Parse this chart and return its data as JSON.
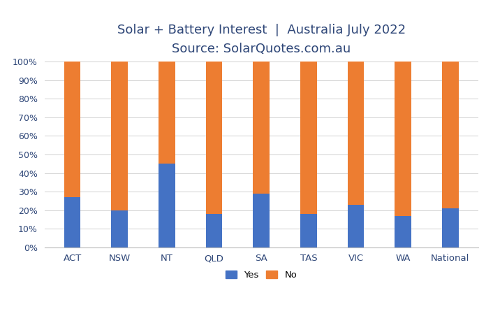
{
  "categories": [
    "ACT",
    "NSW",
    "NT",
    "QLD",
    "SA",
    "TAS",
    "VIC",
    "WA",
    "National"
  ],
  "yes_values": [
    27,
    20,
    45,
    18,
    29,
    18,
    23,
    17,
    21
  ],
  "no_values": [
    73,
    80,
    55,
    82,
    71,
    82,
    77,
    83,
    79
  ],
  "yes_color": "#4472C4",
  "no_color": "#ED7D31",
  "title_line1": "Solar + Battery Interest  |  Australia July 2022",
  "title_line2": "Source: SolarQuotes.com.au",
  "title_fontsize": 13,
  "subtitle_fontsize": 12,
  "ylim": [
    0,
    100
  ],
  "ytick_labels": [
    "0%",
    "10%",
    "20%",
    "30%",
    "40%",
    "50%",
    "60%",
    "70%",
    "80%",
    "90%",
    "100%"
  ],
  "ytick_values": [
    0,
    10,
    20,
    30,
    40,
    50,
    60,
    70,
    80,
    90,
    100
  ],
  "legend_yes": "Yes",
  "legend_no": "No",
  "background_color": "#ffffff",
  "bar_width": 0.35,
  "title_color": "#2F4778",
  "tick_color": "#2F4778",
  "grid_color": "#d0d0d0"
}
